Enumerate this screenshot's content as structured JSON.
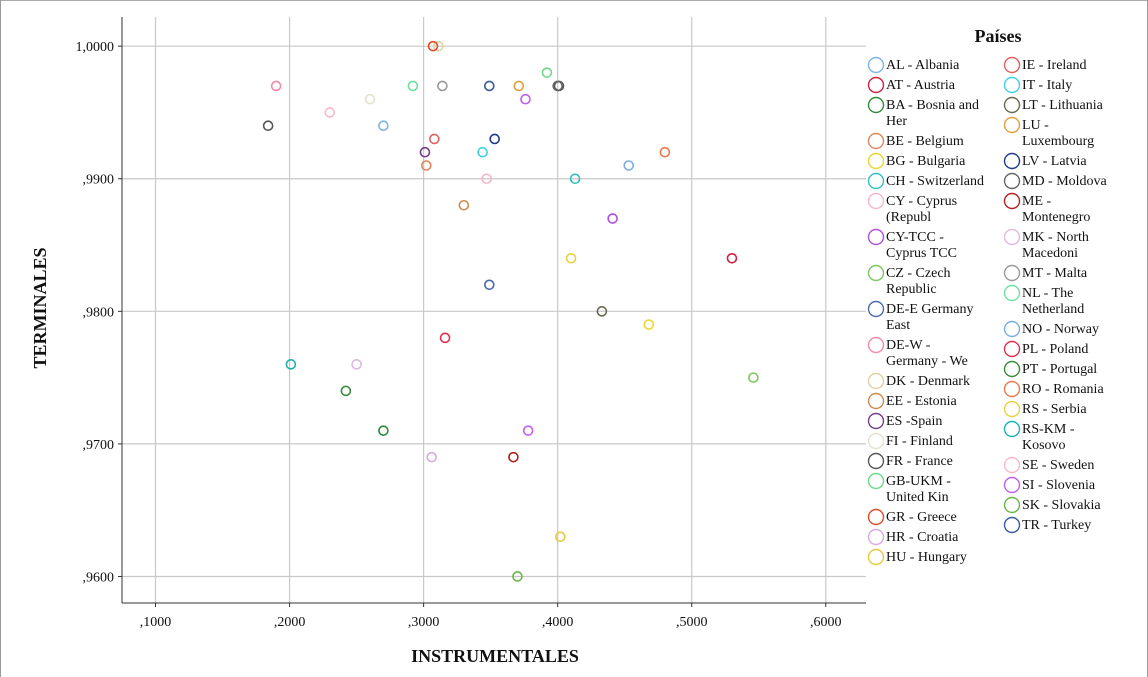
{
  "chart_data": {
    "type": "scatter",
    "xlabel": "INSTRUMENTALES",
    "ylabel": "TERMINALES",
    "xlim": [
      0.075,
      0.63
    ],
    "ylim": [
      0.958,
      1.0022
    ],
    "xticks": [
      0.1,
      0.2,
      0.3,
      0.4,
      0.5,
      0.6
    ],
    "xtick_labels": [
      ",1000",
      ",2000",
      ",3000",
      ",4000",
      ",5000",
      ",6000"
    ],
    "yticks": [
      0.96,
      0.97,
      0.98,
      0.99,
      1.0
    ],
    "ytick_labels": [
      ",9600",
      ",9700",
      ",9800",
      ",9900",
      "1,0000"
    ],
    "grid": true,
    "legend_title": "Países",
    "legend_position": "right",
    "series": [
      {
        "name": "AL - Albania",
        "color": "#7fb3e6",
        "points": [
          [
            0.27,
            0.994
          ]
        ]
      },
      {
        "name": "AT - Austria",
        "color": "#d02040",
        "points": [
          [
            0.53,
            0.984
          ]
        ]
      },
      {
        "name": "BA - Bosnia and Her",
        "color": "#2e8b3a",
        "points": [
          [
            0.27,
            0.971
          ]
        ]
      },
      {
        "name": "BE - Belgium",
        "color": "#e0855a",
        "points": [
          [
            0.302,
            0.991
          ]
        ]
      },
      {
        "name": "BG - Bulgaria",
        "color": "#e8d830",
        "points": [
          [
            0.468,
            0.979
          ]
        ]
      },
      {
        "name": "CH - Switzerland",
        "color": "#30c0c0",
        "points": [
          [
            0.413,
            0.99
          ]
        ]
      },
      {
        "name": "CY - Cyprus (Republ",
        "color": "#f4b6c8",
        "points": [
          [
            0.347,
            0.99
          ]
        ]
      },
      {
        "name": "CY-TCC - Cyprus TCC",
        "color": "#b050e0",
        "points": [
          [
            0.441,
            0.987
          ]
        ]
      },
      {
        "name": "CZ - Czech Republic",
        "color": "#7cc85a",
        "points": [
          [
            0.546,
            0.975
          ]
        ]
      },
      {
        "name": "DE-E Germany East",
        "color": "#4a6aaa",
        "points": [
          [
            0.349,
            0.982
          ]
        ]
      },
      {
        "name": "DE-W - Germany - We",
        "color": "#f08aa8",
        "points": [
          [
            0.19,
            0.997
          ]
        ]
      },
      {
        "name": "DK - Denmark",
        "color": "#e0d2a0",
        "points": [
          [
            0.311,
            1.0
          ]
        ]
      },
      {
        "name": "EE - Estonia",
        "color": "#d08a4a",
        "points": [
          [
            0.33,
            0.988
          ]
        ]
      },
      {
        "name": "ES -Spain",
        "color": "#7a3a8a",
        "points": [
          [
            0.301,
            0.992
          ]
        ]
      },
      {
        "name": "FI - Finland",
        "color": "#e6e0d0",
        "points": [
          [
            0.26,
            0.996
          ]
        ]
      },
      {
        "name": "FR - France",
        "color": "#555555",
        "points": [
          [
            0.184,
            0.994
          ],
          [
            0.401,
            0.997
          ]
        ]
      },
      {
        "name": "GB-UKM - United Kin",
        "color": "#6fd88a",
        "points": [
          [
            0.392,
            0.998
          ]
        ]
      },
      {
        "name": "GR - Greece",
        "color": "#e04a28",
        "points": [
          [
            0.307,
            1.0
          ]
        ]
      },
      {
        "name": "HR - Croatia",
        "color": "#d8a8e0",
        "points": [
          [
            0.306,
            0.969
          ]
        ]
      },
      {
        "name": "HU - Hungary",
        "color": "#e6c840",
        "points": [
          [
            0.402,
            0.963
          ]
        ]
      },
      {
        "name": "IE - Ireland",
        "color": "#e06060",
        "points": [
          [
            0.308,
            0.993
          ]
        ]
      },
      {
        "name": "IT - Italy",
        "color": "#40d0e0",
        "points": [
          [
            0.344,
            0.992
          ]
        ]
      },
      {
        "name": "LT - Lithuania",
        "color": "#6a6a50",
        "points": [
          [
            0.433,
            0.98
          ]
        ]
      },
      {
        "name": "LU - Luxembourg",
        "color": "#e0a040",
        "points": [
          [
            0.371,
            0.997
          ]
        ]
      },
      {
        "name": "LV - Latvia",
        "color": "#203a8a",
        "points": [
          [
            0.353,
            0.993
          ]
        ]
      },
      {
        "name": "MD - Moldova",
        "color": "#666666",
        "points": [
          [
            0.4,
            0.997
          ]
        ]
      },
      {
        "name": "ME - Montenegro",
        "color": "#b02020",
        "points": [
          [
            0.367,
            0.969
          ]
        ]
      },
      {
        "name": "MK - North Macedoni",
        "color": "#e0b8e0",
        "points": [
          [
            0.25,
            0.976
          ]
        ]
      },
      {
        "name": "MT - Malta",
        "color": "#9a9a9a",
        "points": [
          [
            0.314,
            0.997
          ]
        ]
      },
      {
        "name": "NL - The Netherland",
        "color": "#70e0a0",
        "points": [
          [
            0.292,
            0.997
          ]
        ]
      },
      {
        "name": "NO - Norway",
        "color": "#7aaee0",
        "points": [
          [
            0.453,
            0.991
          ]
        ]
      },
      {
        "name": "PL - Poland",
        "color": "#e03050",
        "points": [
          [
            0.316,
            0.978
          ]
        ]
      },
      {
        "name": "PT - Portugal",
        "color": "#3a8a3a",
        "points": [
          [
            0.242,
            0.974
          ]
        ]
      },
      {
        "name": "RO - Romania",
        "color": "#e87a4a",
        "points": [
          [
            0.48,
            0.992
          ]
        ]
      },
      {
        "name": "RS - Serbia",
        "color": "#e8d040",
        "points": [
          [
            0.41,
            0.984
          ]
        ]
      },
      {
        "name": "RS-KM - Kosovo",
        "color": "#20b0b0",
        "points": [
          [
            0.201,
            0.976
          ]
        ]
      },
      {
        "name": "SE - Sweden",
        "color": "#f8b8c8",
        "points": [
          [
            0.23,
            0.995
          ]
        ]
      },
      {
        "name": "SI - Slovenia",
        "color": "#c060f0",
        "points": [
          [
            0.376,
            0.996
          ],
          [
            0.378,
            0.971
          ]
        ]
      },
      {
        "name": "SK - Slovakia",
        "color": "#6ab84a",
        "points": [
          [
            0.37,
            0.96
          ]
        ]
      },
      {
        "name": "TR - Turkey",
        "color": "#3a5a9a",
        "points": [
          [
            0.349,
            0.997
          ]
        ]
      }
    ],
    "legend_col1": [
      {
        "lines": [
          "AL - Albania"
        ],
        "color": "#7fb3e6"
      },
      {
        "lines": [
          "AT - Austria"
        ],
        "color": "#d02040"
      },
      {
        "lines": [
          "BA - Bosnia and",
          "Her"
        ],
        "color": "#2e8b3a"
      },
      {
        "lines": [
          "BE - Belgium"
        ],
        "color": "#e0855a"
      },
      {
        "lines": [
          "BG - Bulgaria"
        ],
        "color": "#e8d830"
      },
      {
        "lines": [
          "CH - Switzerland"
        ],
        "color": "#30c0c0"
      },
      {
        "lines": [
          "CY - Cyprus",
          "(Republ"
        ],
        "color": "#f4b6c8"
      },
      {
        "lines": [
          "CY-TCC -",
          "Cyprus TCC"
        ],
        "color": "#b050e0"
      },
      {
        "lines": [
          "CZ - Czech",
          "Republic"
        ],
        "color": "#7cc85a"
      },
      {
        "lines": [
          "DE-E Germany",
          "East"
        ],
        "color": "#4a6aaa"
      },
      {
        "lines": [
          "DE-W -",
          "Germany - We"
        ],
        "color": "#f08aa8"
      },
      {
        "lines": [
          "DK - Denmark"
        ],
        "color": "#e0d2a0"
      },
      {
        "lines": [
          "EE - Estonia"
        ],
        "color": "#d08a4a"
      },
      {
        "lines": [
          "ES -Spain"
        ],
        "color": "#7a3a8a"
      },
      {
        "lines": [
          "FI - Finland"
        ],
        "color": "#e6e0d0"
      },
      {
        "lines": [
          "FR - France"
        ],
        "color": "#555555"
      },
      {
        "lines": [
          "GB-UKM -",
          "United Kin"
        ],
        "color": "#6fd88a"
      },
      {
        "lines": [
          "GR - Greece"
        ],
        "color": "#e04a28"
      },
      {
        "lines": [
          "HR - Croatia"
        ],
        "color": "#d8a8e0"
      },
      {
        "lines": [
          "HU - Hungary"
        ],
        "color": "#e6c840"
      }
    ],
    "legend_col2": [
      {
        "lines": [
          "IE - Ireland"
        ],
        "color": "#e06060"
      },
      {
        "lines": [
          "IT - Italy"
        ],
        "color": "#40d0e0"
      },
      {
        "lines": [
          "LT - Lithuania"
        ],
        "color": "#6a6a50"
      },
      {
        "lines": [
          "LU -",
          "Luxembourg"
        ],
        "color": "#e0a040"
      },
      {
        "lines": [
          "LV - Latvia"
        ],
        "color": "#203a8a"
      },
      {
        "lines": [
          "MD - Moldova"
        ],
        "color": "#666666"
      },
      {
        "lines": [
          "ME -",
          "Montenegro"
        ],
        "color": "#b02020"
      },
      {
        "lines": [
          "MK - North",
          "Macedoni"
        ],
        "color": "#e0b8e0"
      },
      {
        "lines": [
          "MT - Malta"
        ],
        "color": "#9a9a9a"
      },
      {
        "lines": [
          "NL - The",
          "Netherland"
        ],
        "color": "#70e0a0"
      },
      {
        "lines": [
          "NO - Norway"
        ],
        "color": "#7aaee0"
      },
      {
        "lines": [
          "PL - Poland"
        ],
        "color": "#e03050"
      },
      {
        "lines": [
          "PT - Portugal"
        ],
        "color": "#3a8a3a"
      },
      {
        "lines": [
          "RO - Romania"
        ],
        "color": "#e87a4a"
      },
      {
        "lines": [
          "RS - Serbia"
        ],
        "color": "#e8d040"
      },
      {
        "lines": [
          "RS-KM -",
          "Kosovo"
        ],
        "color": "#20b0b0"
      },
      {
        "lines": [
          "SE - Sweden"
        ],
        "color": "#f8b8c8"
      },
      {
        "lines": [
          "SI - Slovenia"
        ],
        "color": "#c060f0"
      },
      {
        "lines": [
          "SK - Slovakia"
        ],
        "color": "#6ab84a"
      },
      {
        "lines": [
          "TR - Turkey"
        ],
        "color": "#3a5a9a"
      }
    ]
  }
}
